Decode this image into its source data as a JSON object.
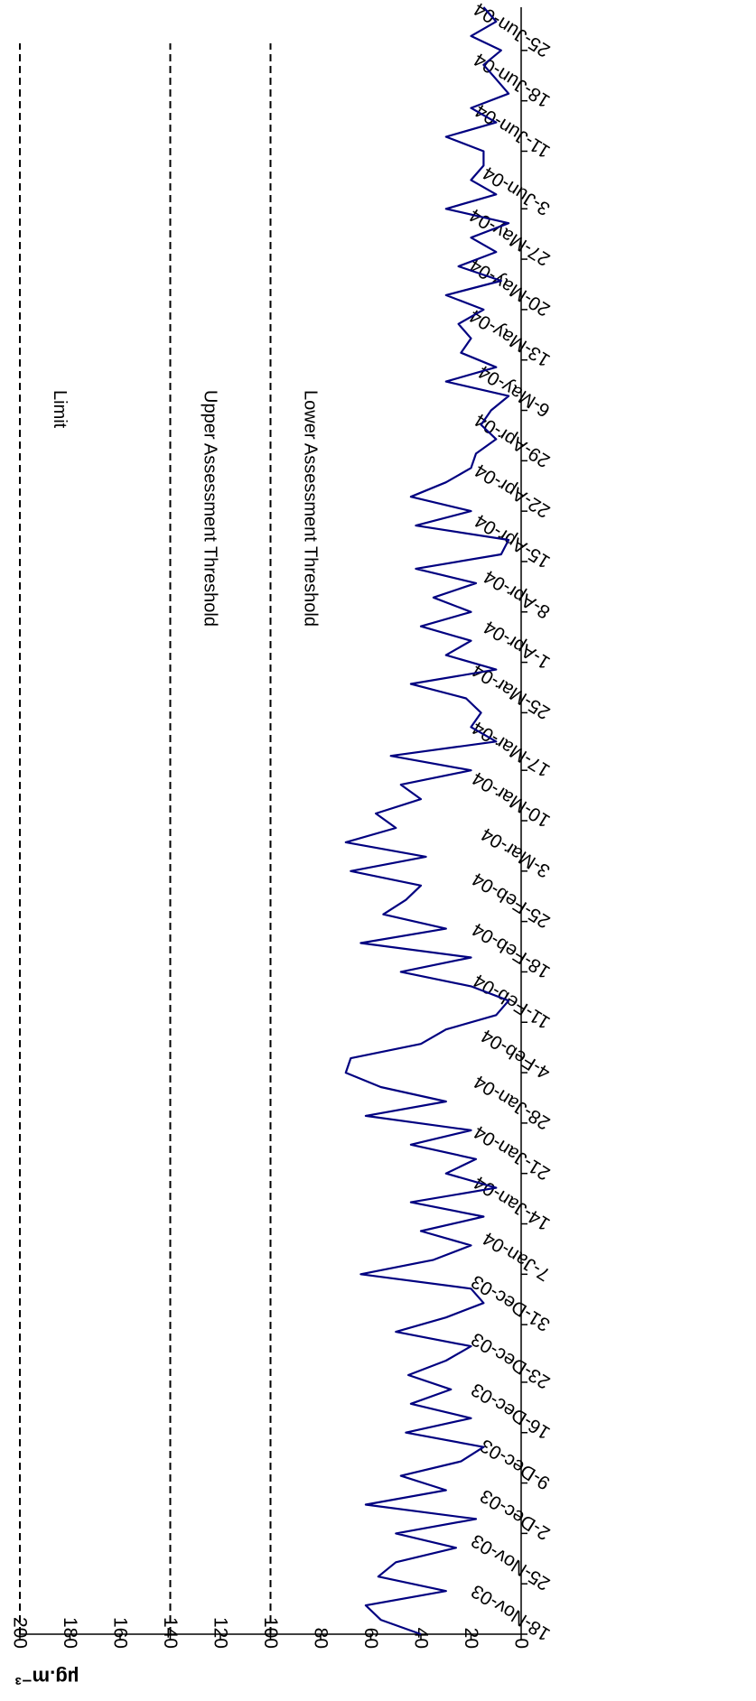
{
  "chart_data": {
    "type": "line",
    "orientation": "rotated-90",
    "ylabel": "µg.m⁻³",
    "ylim": [
      0,
      200
    ],
    "yticks": [
      0,
      20,
      40,
      60,
      80,
      100,
      120,
      140,
      160,
      180,
      200
    ],
    "xlim": [
      "18-Nov-03",
      "1-Jul-04"
    ],
    "xtick_labels": [
      "18-Nov-03",
      "25-Nov-03",
      "2-Dec-03",
      "9-Dec-03",
      "16-Dec-03",
      "23-Dec-03",
      "31-Dec-03",
      "7-Jan-04",
      "14-Jan-04",
      "21-Jan-04",
      "28-Jan-04",
      "4-Feb-04",
      "11-Feb-04",
      "18-Feb-04",
      "25-Feb-04",
      "3-Mar-04",
      "10-Mar-04",
      "17-Mar-04",
      "25-Mar-04",
      "1-Apr-04",
      "8-Apr-04",
      "15-Apr-04",
      "22-Apr-04",
      "29-Apr-04",
      "6-May-04",
      "13-May-04",
      "20-May-04",
      "27-May-04",
      "3-Jun-04",
      "11-Jun-04",
      "18-Jun-04",
      "25-Jun-04"
    ],
    "reference_lines": [
      {
        "label": "Limit",
        "value": 200
      },
      {
        "label": "Upper Assessment Threshold",
        "value": 140
      },
      {
        "label": "Lower Assessment Threshold",
        "value": 100
      }
    ],
    "series": [
      {
        "color": "#000080",
        "x": [
          "18-Nov-03",
          "20-Nov-03",
          "22-Nov-03",
          "24-Nov-03",
          "26-Nov-03",
          "28-Nov-03",
          "30-Nov-03",
          "2-Dec-03",
          "4-Dec-03",
          "6-Dec-03",
          "8-Dec-03",
          "10-Dec-03",
          "12-Dec-03",
          "14-Dec-03",
          "16-Dec-03",
          "18-Dec-03",
          "20-Dec-03",
          "22-Dec-03",
          "24-Dec-03",
          "26-Dec-03",
          "28-Dec-03",
          "30-Dec-03",
          "1-Jan-04",
          "3-Jan-04",
          "5-Jan-04",
          "7-Jan-04",
          "9-Jan-04",
          "11-Jan-04",
          "13-Jan-04",
          "15-Jan-04",
          "17-Jan-04",
          "19-Jan-04",
          "21-Jan-04",
          "23-Jan-04",
          "25-Jan-04",
          "27-Jan-04",
          "29-Jan-04",
          "31-Jan-04",
          "2-Feb-04",
          "4-Feb-04",
          "6-Feb-04",
          "8-Feb-04",
          "10-Feb-04",
          "12-Feb-04",
          "14-Feb-04",
          "16-Feb-04",
          "18-Feb-04",
          "20-Feb-04",
          "22-Feb-04",
          "24-Feb-04",
          "26-Feb-04",
          "28-Feb-04",
          "1-Mar-04",
          "3-Mar-04",
          "5-Mar-04",
          "7-Mar-04",
          "9-Mar-04",
          "11-Mar-04",
          "13-Mar-04",
          "15-Mar-04",
          "17-Mar-04",
          "19-Mar-04",
          "21-Mar-04",
          "23-Mar-04",
          "25-Mar-04",
          "27-Mar-04",
          "29-Mar-04",
          "31-Mar-04",
          "2-Apr-04",
          "4-Apr-04",
          "6-Apr-04",
          "8-Apr-04",
          "10-Apr-04",
          "12-Apr-04",
          "14-Apr-04",
          "16-Apr-04",
          "18-Apr-04",
          "20-Apr-04",
          "22-Apr-04",
          "24-Apr-04",
          "26-Apr-04",
          "28-Apr-04",
          "30-Apr-04",
          "2-May-04",
          "4-May-04",
          "6-May-04",
          "8-May-04",
          "10-May-04",
          "12-May-04",
          "14-May-04",
          "16-May-04",
          "18-May-04",
          "20-May-04",
          "22-May-04",
          "24-May-04",
          "26-May-04",
          "28-May-04",
          "30-May-04",
          "1-Jun-04",
          "3-Jun-04",
          "5-Jun-04",
          "7-Jun-04",
          "9-Jun-04",
          "11-Jun-04",
          "13-Jun-04",
          "15-Jun-04",
          "17-Jun-04",
          "19-Jun-04",
          "21-Jun-04",
          "23-Jun-04",
          "25-Jun-04",
          "27-Jun-04",
          "29-Jun-04",
          "1-Jul-04"
        ],
        "y": [
          40,
          56,
          62,
          30,
          57,
          50,
          26,
          50,
          18,
          62,
          30,
          48,
          24,
          15,
          46,
          20,
          44,
          28,
          45,
          30,
          20,
          50,
          30,
          15,
          20,
          64,
          35,
          20,
          40,
          15,
          44,
          10,
          30,
          18,
          44,
          20,
          62,
          30,
          56,
          70,
          68,
          40,
          30,
          10,
          5,
          20,
          48,
          20,
          64,
          30,
          55,
          46,
          40,
          68,
          38,
          70,
          50,
          58,
          40,
          48,
          20,
          52,
          10,
          20,
          16,
          22,
          44,
          10,
          30,
          20,
          40,
          20,
          35,
          18,
          42,
          8,
          5,
          42,
          20,
          44,
          30,
          20,
          18,
          10,
          16,
          12,
          5,
          30,
          10,
          24,
          20,
          25,
          15,
          30,
          8,
          25,
          10,
          20,
          5,
          30,
          10,
          20,
          15,
          15,
          30,
          10,
          20,
          5,
          10,
          15,
          8,
          20,
          10,
          15
        ]
      }
    ]
  }
}
